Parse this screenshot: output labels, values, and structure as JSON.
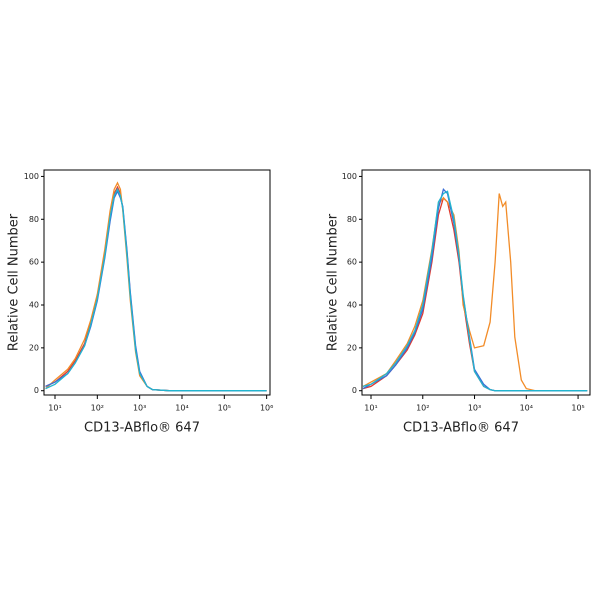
{
  "chart_data": [
    {
      "type": "line",
      "xscale": "log",
      "xlabel": "CD13-ABflo® 647",
      "ylabel": "Relative Cell Number",
      "xlim": [
        5.5,
        1200000
      ],
      "ylim": [
        -2,
        103
      ],
      "xticks": [
        {
          "value": 10,
          "label": "10¹"
        },
        {
          "value": 100,
          "label": "10²"
        },
        {
          "value": 1000,
          "label": "10³"
        },
        {
          "value": 10000,
          "label": "10⁴"
        },
        {
          "value": 100000,
          "label": "10⁵"
        },
        {
          "value": 1000000,
          "label": "10⁶"
        }
      ],
      "yticks": [
        0,
        20,
        40,
        60,
        80,
        100
      ],
      "x": [
        6,
        10,
        20,
        30,
        50,
        70,
        100,
        150,
        200,
        250,
        300,
        350,
        400,
        500,
        600,
        800,
        1000,
        1500,
        2000,
        5000,
        1000000
      ],
      "series": [
        {
          "color": "#e03a2e",
          "values": [
            2,
            4,
            9,
            14,
            22,
            32,
            44,
            64,
            80,
            92,
            95,
            92,
            85,
            65,
            45,
            20,
            8,
            2,
            0.5,
            0,
            0
          ]
        },
        {
          "color": "#f28c28",
          "values": [
            1,
            5,
            10,
            15,
            24,
            33,
            45,
            66,
            84,
            94,
            97,
            94,
            84,
            62,
            42,
            18,
            7,
            2,
            0.5,
            0,
            0
          ]
        },
        {
          "color": "#3b6fd6",
          "values": [
            2,
            4,
            8,
            13,
            21,
            30,
            42,
            62,
            79,
            90,
            93,
            90,
            86,
            66,
            46,
            21,
            9,
            2,
            0.5,
            0,
            0
          ]
        },
        {
          "color": "#22b5cf",
          "values": [
            1,
            3,
            8,
            13,
            21,
            31,
            43,
            63,
            81,
            91,
            94,
            91,
            85,
            64,
            44,
            19,
            8,
            2,
            0.5,
            0,
            0
          ]
        }
      ]
    },
    {
      "type": "line",
      "xscale": "log",
      "xlabel": "CD13-ABflo® 647",
      "ylabel": "Relative Cell Number",
      "xlim": [
        6.7,
        170000
      ],
      "ylim": [
        -2,
        103
      ],
      "xticks": [
        {
          "value": 10,
          "label": "10¹"
        },
        {
          "value": 100,
          "label": "10²"
        },
        {
          "value": 1000,
          "label": "10³"
        },
        {
          "value": 10000,
          "label": "10⁴"
        },
        {
          "value": 100000,
          "label": "10⁵"
        }
      ],
      "yticks": [
        0,
        20,
        40,
        60,
        80,
        100
      ],
      "x": [
        7,
        10,
        20,
        30,
        50,
        70,
        100,
        150,
        200,
        250,
        300,
        400,
        500,
        600,
        800,
        1000,
        1500,
        2000,
        2500,
        3000,
        3500,
        4000,
        5000,
        6000,
        8000,
        10000,
        15000,
        150000
      ],
      "series": [
        {
          "color": "#e03a2e",
          "values": [
            1,
            2,
            7,
            12,
            19,
            26,
            36,
            60,
            82,
            90,
            88,
            75,
            60,
            42,
            22,
            9,
            2,
            0.5,
            0,
            0,
            0,
            0,
            0,
            0,
            0,
            0,
            0,
            0
          ]
        },
        {
          "color": "#f28c28",
          "values": [
            2,
            4,
            8,
            14,
            22,
            30,
            42,
            66,
            87,
            90,
            88,
            82,
            65,
            40,
            28,
            20,
            21,
            32,
            60,
            92,
            86,
            88,
            60,
            25,
            5,
            1,
            0,
            0
          ]
        },
        {
          "color": "#3b6fd6",
          "values": [
            1,
            3,
            7,
            12,
            20,
            27,
            38,
            62,
            85,
            94,
            92,
            78,
            62,
            44,
            25,
            10,
            3,
            0.5,
            0,
            0,
            0,
            0,
            0,
            0,
            0,
            0,
            0,
            0
          ]
        },
        {
          "color": "#22b5cf",
          "values": [
            2,
            3,
            8,
            13,
            21,
            28,
            40,
            65,
            88,
            92,
            93,
            80,
            63,
            45,
            24,
            9,
            2,
            0.5,
            0,
            0,
            0,
            0,
            0,
            0,
            0,
            0,
            0,
            0
          ]
        }
      ]
    }
  ]
}
